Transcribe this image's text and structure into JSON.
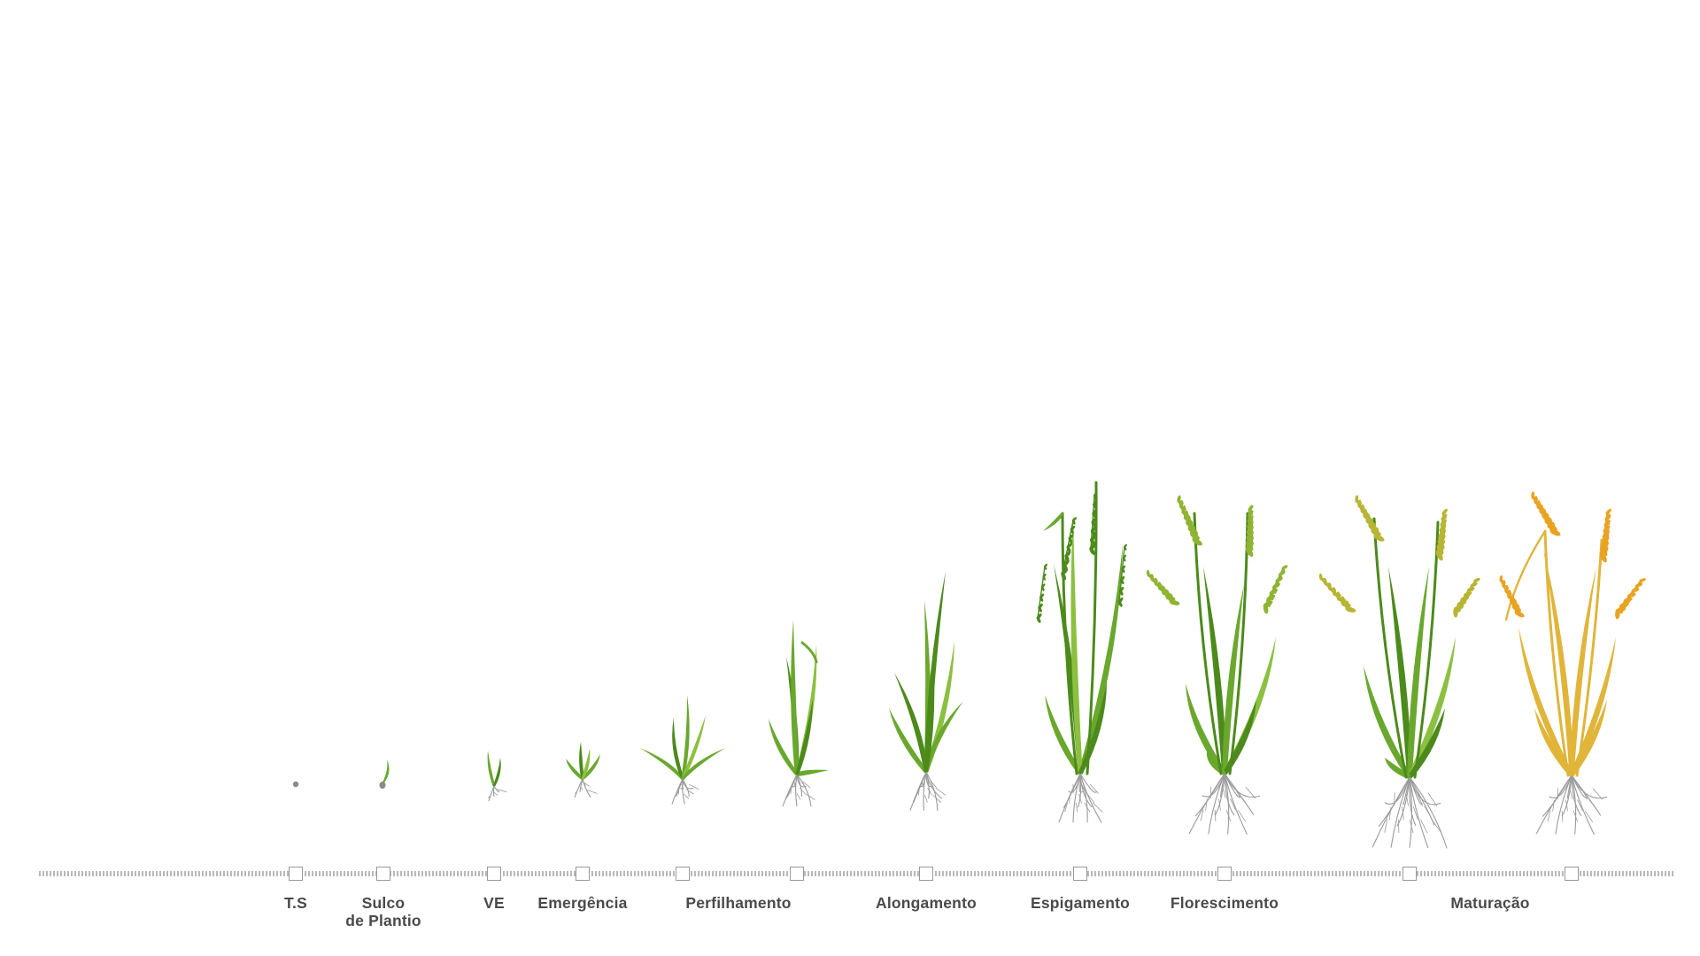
{
  "colors": {
    "leaf": "#6aa82d",
    "leaf_dark": "#4c8a1c",
    "leaf_light": "#8cc040",
    "grain_green": "#8fb433",
    "grain_yellow": "#b8b534",
    "mature_stem": "#e0b53a",
    "mature_grain": "#e9a322",
    "root": "#9b9b9b",
    "seed": "#8a8a8a",
    "marker_border": "#9a9a9a",
    "label_text": "#4a4a4a",
    "axis_dots": "#b9b9b9"
  },
  "stages": [
    {
      "id": "ts",
      "label_lines": [
        "T.S"
      ],
      "icon": "seed-icon"
    },
    {
      "id": "sulco",
      "label_lines": [
        "Sulco",
        "de Plantio"
      ],
      "icon": "germinating-seed-icon"
    },
    {
      "id": "ve",
      "label_lines": [
        "VE"
      ],
      "icon": "sprout-icon"
    },
    {
      "id": "emergencia",
      "label_lines": [
        "Emergência"
      ],
      "icon": "seedling-icon"
    },
    {
      "id": "perfilhamento",
      "label_lines": [
        "Perfilhamento"
      ],
      "icon": "young-plant-icon"
    },
    {
      "id": "perfilhamento-2",
      "label_lines": [],
      "icon": "tillering-plant-icon"
    },
    {
      "id": "alongamento",
      "label_lines": [
        "Alongamento"
      ],
      "icon": "elongating-plant-icon"
    },
    {
      "id": "espigamento",
      "label_lines": [
        "Espigamento"
      ],
      "icon": "heading-plant-icon"
    },
    {
      "id": "florescimento",
      "label_lines": [
        "Florescimento"
      ],
      "icon": "flowering-plant-icon"
    },
    {
      "id": "maturacao",
      "label_lines": [
        "Maturação"
      ],
      "icon": "ripening-plant-icon"
    },
    {
      "id": "maturacao-2",
      "label_lines": [],
      "icon": "mature-plant-icon"
    }
  ]
}
